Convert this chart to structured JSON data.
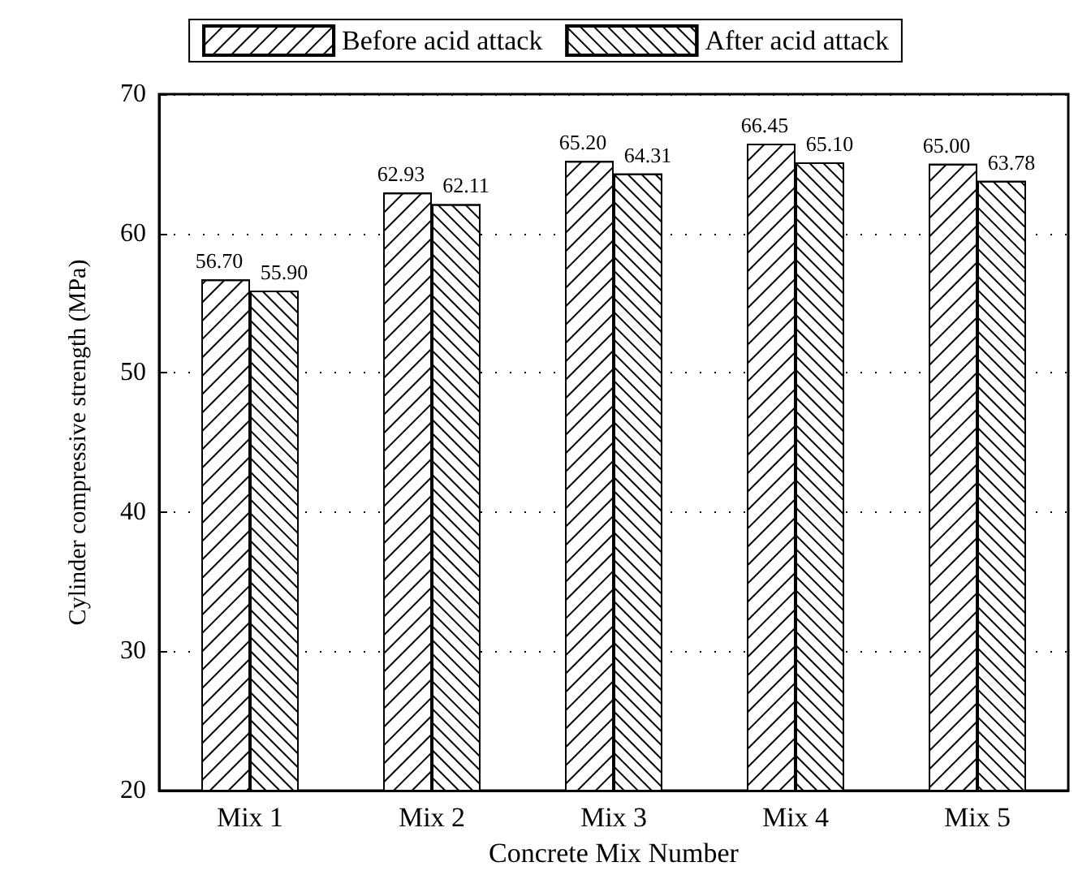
{
  "chart_data": {
    "type": "bar",
    "xlabel": "Concrete Mix Number",
    "ylabel": "Cylinder compressive strength (MPa)",
    "categories": [
      "Mix 1",
      "Mix 2",
      "Mix 3",
      "Mix 4",
      "Mix 5"
    ],
    "series": [
      {
        "name": "Before acid attack",
        "color": "#ffffff",
        "values": [
          56.7,
          62.93,
          65.2,
          66.45,
          65.0
        ],
        "value_labels": [
          "56.70",
          "62.93",
          "65.20",
          "66.45",
          "65.00"
        ]
      },
      {
        "name": "After acid attack",
        "color": "#ffffff",
        "values": [
          55.9,
          62.11,
          64.31,
          65.1,
          63.78
        ],
        "value_labels": [
          "55.90",
          "62.11",
          "64.31",
          "65.10",
          "63.78"
        ]
      }
    ],
    "ylim": [
      20,
      70
    ],
    "yticks": [
      20,
      30,
      40,
      50,
      60,
      70
    ],
    "grid": "y",
    "legend": "top"
  }
}
